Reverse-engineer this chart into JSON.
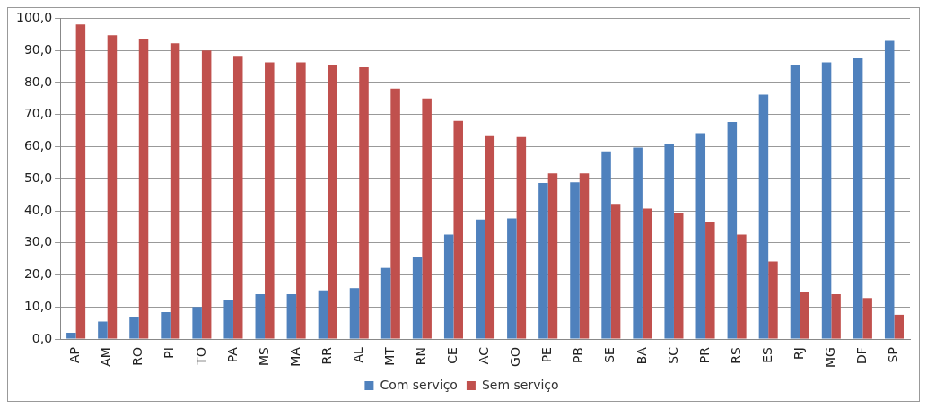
{
  "chart_data": {
    "type": "bar",
    "categories": [
      "AP",
      "AM",
      "RO",
      "PI",
      "TO",
      "PA",
      "MS",
      "MA",
      "RR",
      "AL",
      "MT",
      "RN",
      "CE",
      "AC",
      "GO",
      "PE",
      "PB",
      "SE",
      "BA",
      "SC",
      "PR",
      "RS",
      "ES",
      "RJ",
      "MG",
      "DF",
      "SP"
    ],
    "series": [
      {
        "name": "Com serviço",
        "color": "#4f81bd",
        "values": [
          2.0,
          5.5,
          7.0,
          8.4,
          10.0,
          12.1,
          14.0,
          14.0,
          15.2,
          15.9,
          22.2,
          25.5,
          32.6,
          37.3,
          37.6,
          48.7,
          48.9,
          58.5,
          59.7,
          60.7,
          64.2,
          67.7,
          76.2,
          85.6,
          86.3,
          87.5,
          93.0
        ]
      },
      {
        "name": "Sem serviço",
        "color": "#c0504d",
        "values": [
          98.1,
          94.7,
          93.4,
          92.2,
          90.0,
          88.3,
          86.3,
          86.3,
          85.4,
          84.7,
          78.1,
          75.0,
          68.0,
          63.3,
          63.0,
          51.7,
          51.7,
          41.9,
          40.7,
          39.4,
          36.4,
          32.6,
          24.2,
          14.7,
          14.0,
          12.8,
          7.6
        ]
      }
    ],
    "ylim": [
      0,
      100
    ],
    "yticks": [
      {
        "value": 0,
        "label": "0,0"
      },
      {
        "value": 10,
        "label": "10,0"
      },
      {
        "value": 20,
        "label": "20,0"
      },
      {
        "value": 30,
        "label": "30,0"
      },
      {
        "value": 40,
        "label": "40,0"
      },
      {
        "value": 50,
        "label": "50,0"
      },
      {
        "value": 60,
        "label": "60,0"
      },
      {
        "value": 70,
        "label": "70,0"
      },
      {
        "value": 80,
        "label": "80,0"
      },
      {
        "value": 90,
        "label": "90,0"
      },
      {
        "value": 100,
        "label": "100,0"
      }
    ],
    "grid": "y",
    "legend": "bottom"
  }
}
